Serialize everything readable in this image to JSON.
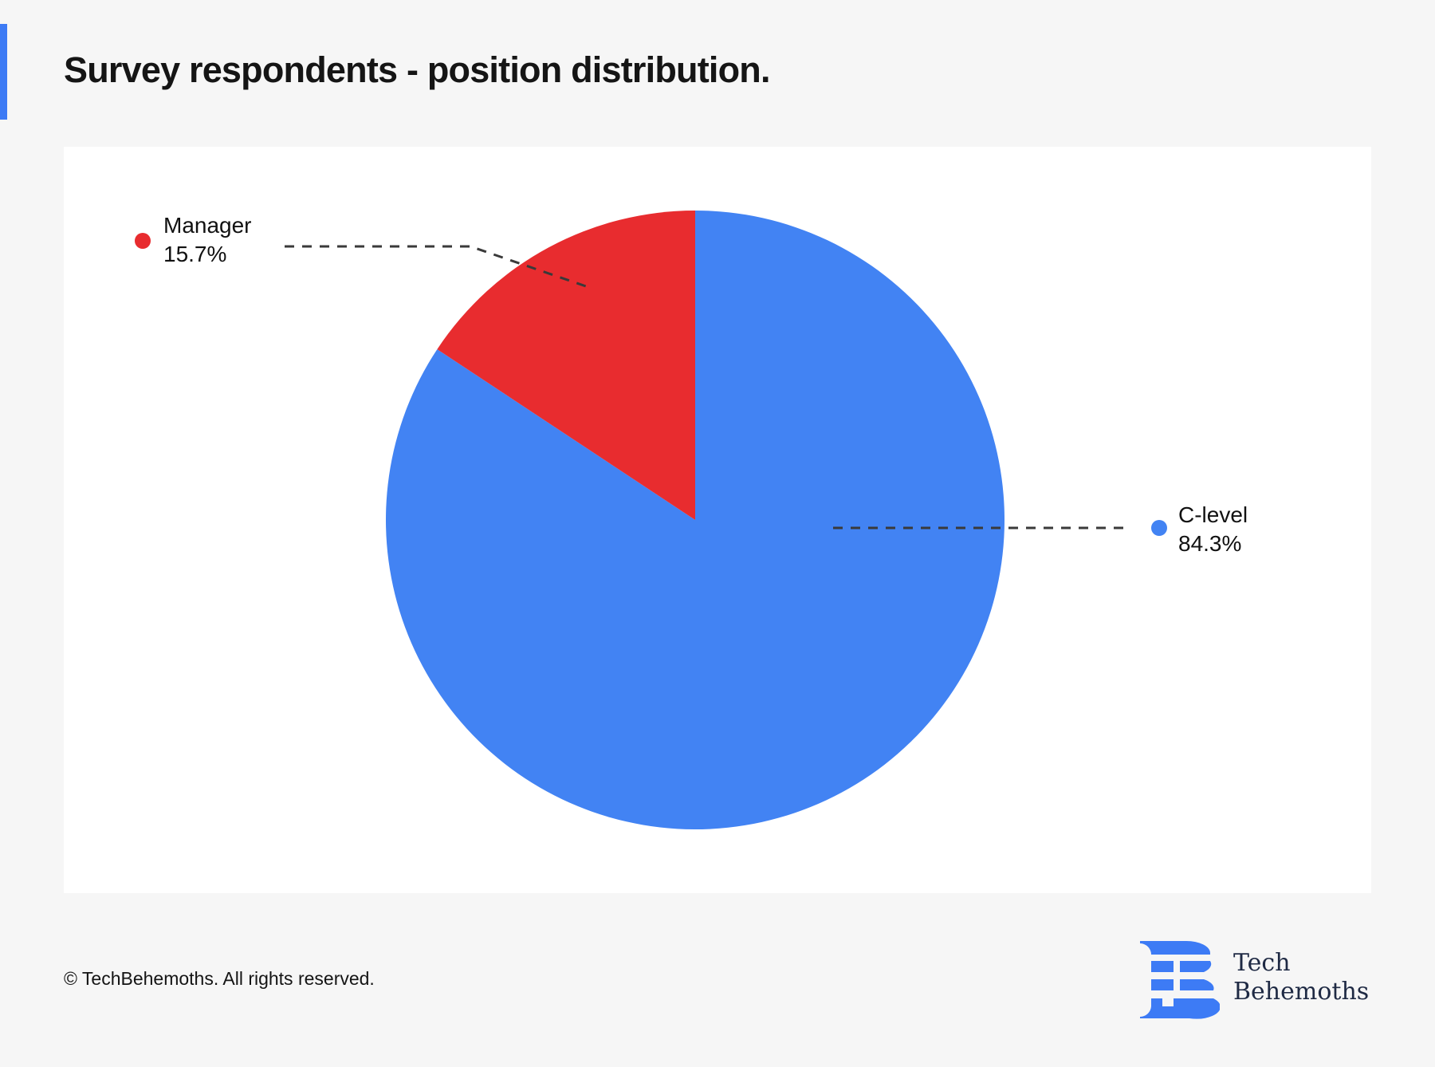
{
  "header": {
    "title": "Survey respondents - position distribution.",
    "accent_color": "#3d7bf5"
  },
  "chart_data": {
    "type": "pie",
    "title": "Survey respondents - position distribution.",
    "categories": [
      "Manager",
      "C-level"
    ],
    "values": [
      15.7,
      84.3
    ],
    "unit": "%",
    "colors": [
      "#e82c2f",
      "#4283f3"
    ],
    "labels": [
      {
        "name": "Manager",
        "value_text": "15.7%",
        "position": "top-left"
      },
      {
        "name": "C-level",
        "value_text": "84.3%",
        "position": "right"
      }
    ],
    "start_angle_deg": 0,
    "direction": "counterclockwise-for-first-slice"
  },
  "legend": {
    "manager": {
      "name": "Manager",
      "value": "15.7%",
      "color": "#e82c2f"
    },
    "clevel": {
      "name": "C-level",
      "value": "84.3%",
      "color": "#4283f3"
    }
  },
  "footer": {
    "copyright": "© TechBehemoths. All rights reserved."
  },
  "brand": {
    "line1": "Tech",
    "line2": "Behemoths",
    "logo_icon": "techbehemoths-logo-icon",
    "logo_color": "#3d7bf5",
    "text_color": "#1f2a44"
  }
}
